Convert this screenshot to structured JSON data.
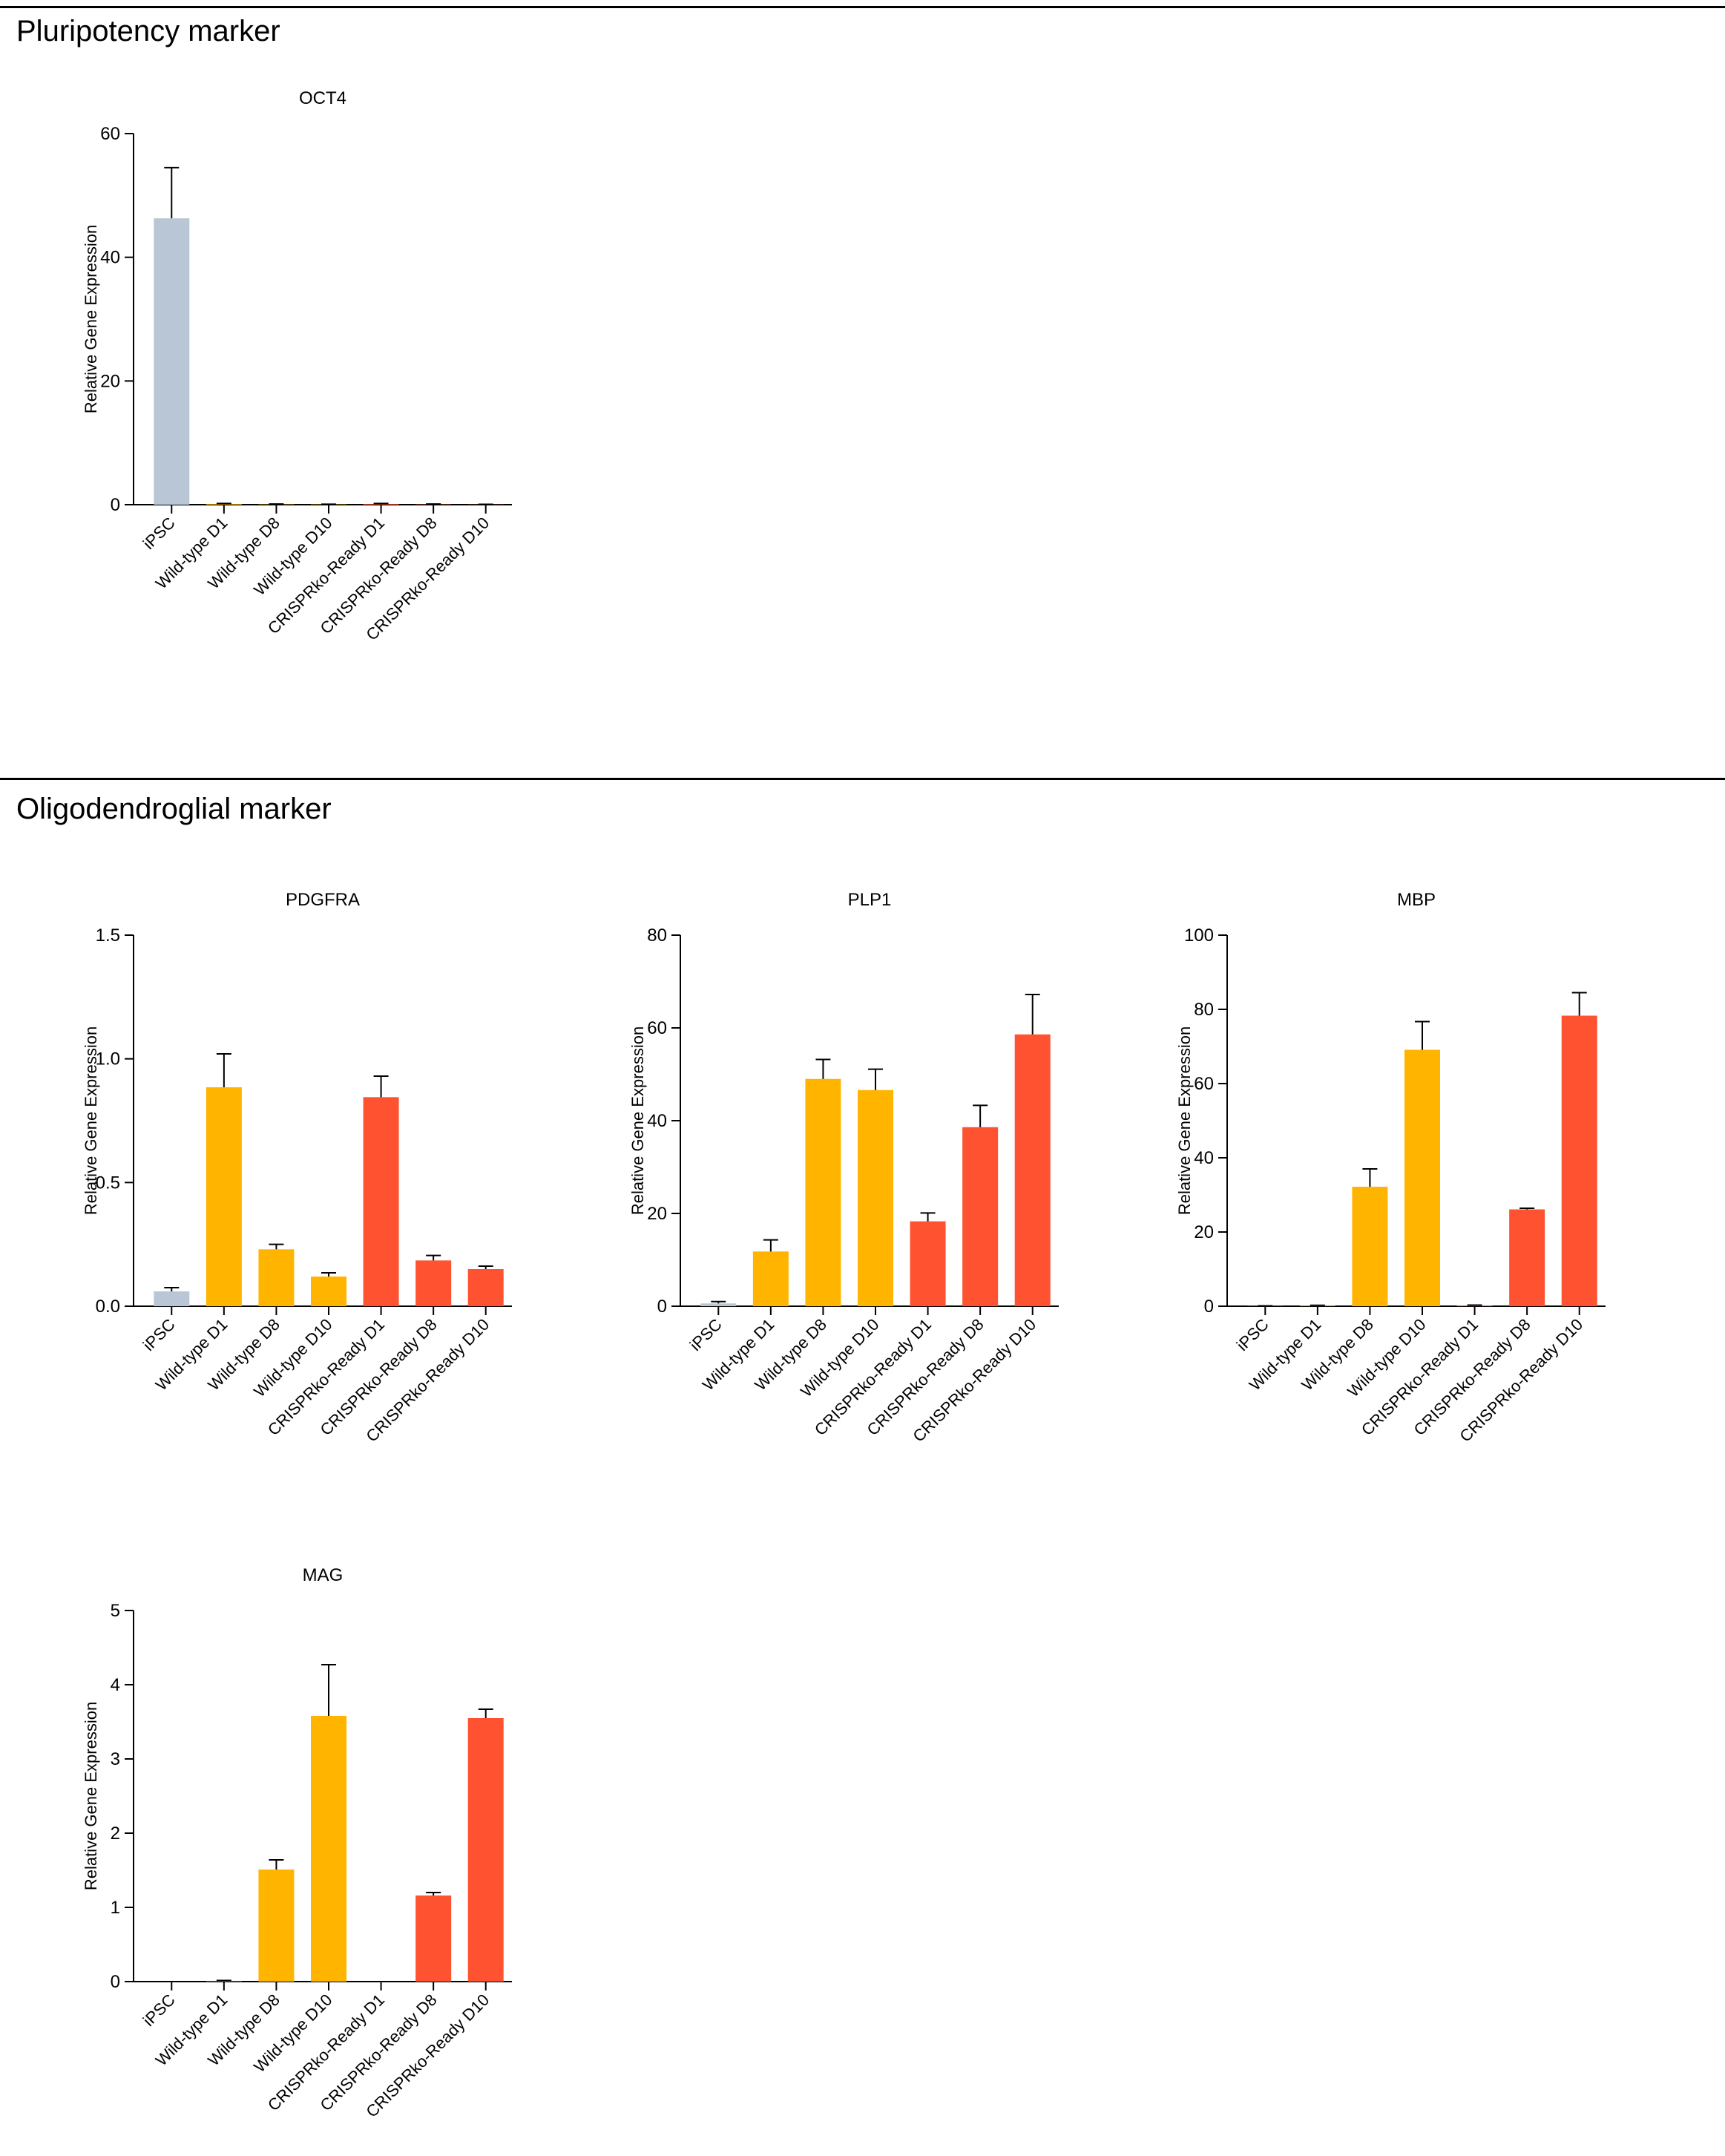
{
  "colors": {
    "ipsc": "#B9C6D6",
    "wild_type": "#FFB400",
    "crispr_ready": "#FF5230",
    "axis": "#000000"
  },
  "sections": [
    {
      "title": "Pluripotency marker"
    },
    {
      "title": "Oligodendroglial marker"
    }
  ],
  "chart_data": [
    {
      "type": "bar",
      "title": "OCT4",
      "ylabel": "Relative Gene Expression",
      "categories": [
        "iPSC",
        "Wild-type D1",
        "Wild-type D8",
        "Wild-type D10",
        "CRISPRko-Ready D1",
        "CRISPRko-Ready D8",
        "CRISPRko-Ready D10"
      ],
      "values": [
        46.3,
        0.1,
        0.05,
        0.05,
        0.1,
        0.05,
        0.03
      ],
      "errors": [
        8.2,
        0.1,
        0.05,
        0.03,
        0.1,
        0.05,
        0.03
      ],
      "ylim": [
        0,
        60
      ],
      "yticks": [
        0,
        20,
        40,
        60
      ],
      "yticklabels": [
        "0",
        "20",
        "40",
        "60"
      ]
    },
    {
      "type": "bar",
      "title": "PDGFRA",
      "ylabel": "Relative Gene Expression",
      "categories": [
        "iPSC",
        "Wild-type D1",
        "Wild-type D8",
        "Wild-type D10",
        "CRISPRko-Ready D1",
        "CRISPRko-Ready D8",
        "CRISPRko-Ready D10"
      ],
      "values": [
        0.06,
        0.885,
        0.23,
        0.12,
        0.845,
        0.185,
        0.15
      ],
      "errors": [
        0.015,
        0.135,
        0.02,
        0.015,
        0.085,
        0.02,
        0.012
      ],
      "ylim": [
        0,
        1.5
      ],
      "yticks": [
        0,
        0.5,
        1.0,
        1.5
      ],
      "yticklabels": [
        "0.0",
        "0.5",
        "1.0",
        "1.5"
      ]
    },
    {
      "type": "bar",
      "title": "PLP1",
      "ylabel": "Relative Gene Expression",
      "categories": [
        "iPSC",
        "Wild-type D1",
        "Wild-type D8",
        "Wild-type D10",
        "CRISPRko-Ready D1",
        "CRISPRko-Ready D8",
        "CRISPRko-Ready D10"
      ],
      "values": [
        0.6,
        11.8,
        49.0,
        46.6,
        18.3,
        38.6,
        58.6
      ],
      "errors": [
        0.4,
        2.5,
        4.2,
        4.5,
        1.8,
        4.7,
        8.6
      ],
      "ylim": [
        0,
        80
      ],
      "yticks": [
        0,
        20,
        40,
        60,
        80
      ],
      "yticklabels": [
        "0",
        "20",
        "40",
        "60",
        "80"
      ]
    },
    {
      "type": "bar",
      "title": "MBP",
      "ylabel": "Relative Gene Expression",
      "categories": [
        "iPSC",
        "Wild-type D1",
        "Wild-type D8",
        "Wild-type D10",
        "CRISPRko-Ready D1",
        "CRISPRko-Ready D8",
        "CRISPRko-Ready D10"
      ],
      "values": [
        0.05,
        0.15,
        32.2,
        69.1,
        0.2,
        26.1,
        78.3
      ],
      "errors": [
        0.05,
        0.1,
        4.8,
        7.6,
        0.1,
        0.3,
        6.2
      ],
      "ylim": [
        0,
        100
      ],
      "yticks": [
        0,
        20,
        40,
        60,
        80,
        100
      ],
      "yticklabels": [
        "0",
        "20",
        "40",
        "60",
        "80",
        "100"
      ]
    },
    {
      "type": "bar",
      "title": "MAG",
      "ylabel": "Relative Gene Expression",
      "categories": [
        "iPSC",
        "Wild-type D1",
        "Wild-type D8",
        "Wild-type D10",
        "CRISPRko-Ready D1",
        "CRISPRko-Ready D8",
        "CRISPRko-Ready D10"
      ],
      "values": [
        0.0,
        0.005,
        1.51,
        3.58,
        0.0,
        1.16,
        3.55
      ],
      "errors": [
        0.0,
        0.01,
        0.13,
        0.69,
        0.0,
        0.04,
        0.12
      ],
      "ylim": [
        0,
        5
      ],
      "yticks": [
        0,
        1,
        2,
        3,
        4,
        5
      ],
      "yticklabels": [
        "0",
        "1",
        "2",
        "3",
        "4",
        "5"
      ]
    }
  ]
}
